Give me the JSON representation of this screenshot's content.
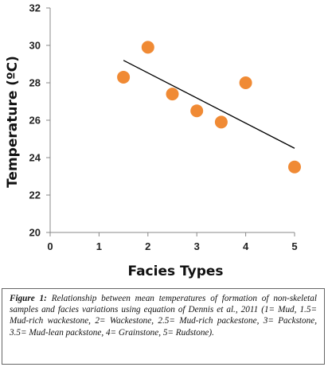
{
  "chart_data": {
    "type": "scatter",
    "xlabel": "Facies Types",
    "ylabel": "Temperature (ºC)",
    "xlim": [
      0,
      5
    ],
    "ylim": [
      20,
      32
    ],
    "xticks": [
      "0",
      "1",
      "2",
      "3",
      "4",
      "5"
    ],
    "yticks": [
      "20",
      "22",
      "24",
      "26",
      "28",
      "30",
      "32"
    ],
    "points": [
      {
        "x": 1.5,
        "y": 28.3
      },
      {
        "x": 2.0,
        "y": 29.9
      },
      {
        "x": 2.5,
        "y": 27.4
      },
      {
        "x": 3.0,
        "y": 26.5
      },
      {
        "x": 3.5,
        "y": 25.9
      },
      {
        "x": 4.0,
        "y": 28.0
      },
      {
        "x": 5.0,
        "y": 23.5
      }
    ],
    "trendline": {
      "x": [
        1.5,
        5.0
      ],
      "y": [
        29.2,
        24.5
      ]
    },
    "marker_color": "#F08A34",
    "line_color": "#000000",
    "grid": false
  },
  "caption": {
    "label": "Figure 1:",
    "text": " Relationship between mean temperatures of formation of non-skeletal samples and facies variations using equation of Dennis et al., 2011 (1= Mud, 1.5= Mud-rich wackestone, 2= Wackestone, 2.5= Mud-rich packestone, 3= Packstone, 3.5= Mud-lean packstone, 4= Grainstone, 5= Rudstone)."
  }
}
